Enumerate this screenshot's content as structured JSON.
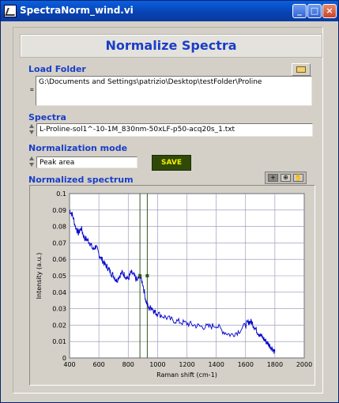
{
  "window": {
    "title": "SpectraNorm_wind.vi",
    "minimize": "_",
    "maximize": "□",
    "close": "×"
  },
  "header": {
    "title": "Normalize Spectra"
  },
  "load_folder": {
    "label": "Load Folder",
    "path": "G:\\Documents and Settings\\patrizio\\Desktop\\testFolder\\Proline"
  },
  "spectra": {
    "label": "Spectra",
    "value": "L-Proline-sol1^-10-1M_830nm-50xLF-p50-acq20s_1.txt"
  },
  "normalization": {
    "label": "Normalization mode",
    "value": "Peak area"
  },
  "save_button": {
    "label": "SAVE"
  },
  "chart_label": "Normalized spectrum",
  "palette": {
    "zoom": "⊕",
    "pan": "✋"
  },
  "colors": {
    "accent": "#1a3ec8",
    "trace": "#0000cc",
    "cursor": "#2f5a1a",
    "save_text": "#f4f000"
  },
  "chart_data": {
    "type": "line",
    "xlabel": "Raman shift (cm-1)",
    "ylabel": "Intensity (a.u.)",
    "xlim": [
      400,
      2000
    ],
    "ylim": [
      0,
      0.1
    ],
    "xticks": [
      400,
      600,
      800,
      1000,
      1200,
      1400,
      1600,
      1800,
      2000
    ],
    "yticks": [
      0,
      0.01,
      0.02,
      0.03,
      0.04,
      0.05,
      0.06,
      0.07,
      0.08,
      0.09,
      0.1
    ],
    "grid": true,
    "cursors": [
      880,
      930
    ],
    "series": [
      {
        "x": [
          400,
          420,
          440,
          460,
          480,
          500,
          520,
          540,
          560,
          580,
          600,
          620,
          640,
          660,
          680,
          700,
          720,
          740,
          760,
          780,
          800,
          820,
          840,
          860,
          880,
          900,
          920,
          940,
          960,
          980,
          1000,
          1050,
          1100,
          1150,
          1200,
          1250,
          1300,
          1350,
          1400,
          1450,
          1500,
          1550,
          1600,
          1620,
          1640,
          1660,
          1680,
          1700,
          1720,
          1740,
          1760,
          1780,
          1800
        ],
        "y": [
          0.09,
          0.087,
          0.08,
          0.076,
          0.079,
          0.073,
          0.072,
          0.07,
          0.066,
          0.068,
          0.063,
          0.06,
          0.057,
          0.055,
          0.052,
          0.05,
          0.047,
          0.05,
          0.052,
          0.05,
          0.048,
          0.052,
          0.05,
          0.047,
          0.05,
          0.045,
          0.035,
          0.03,
          0.031,
          0.028,
          0.027,
          0.025,
          0.023,
          0.022,
          0.021,
          0.02,
          0.019,
          0.019,
          0.02,
          0.016,
          0.014,
          0.016,
          0.02,
          0.022,
          0.022,
          0.019,
          0.016,
          0.014,
          0.012,
          0.01,
          0.008,
          0.006,
          0.004
        ]
      }
    ]
  }
}
